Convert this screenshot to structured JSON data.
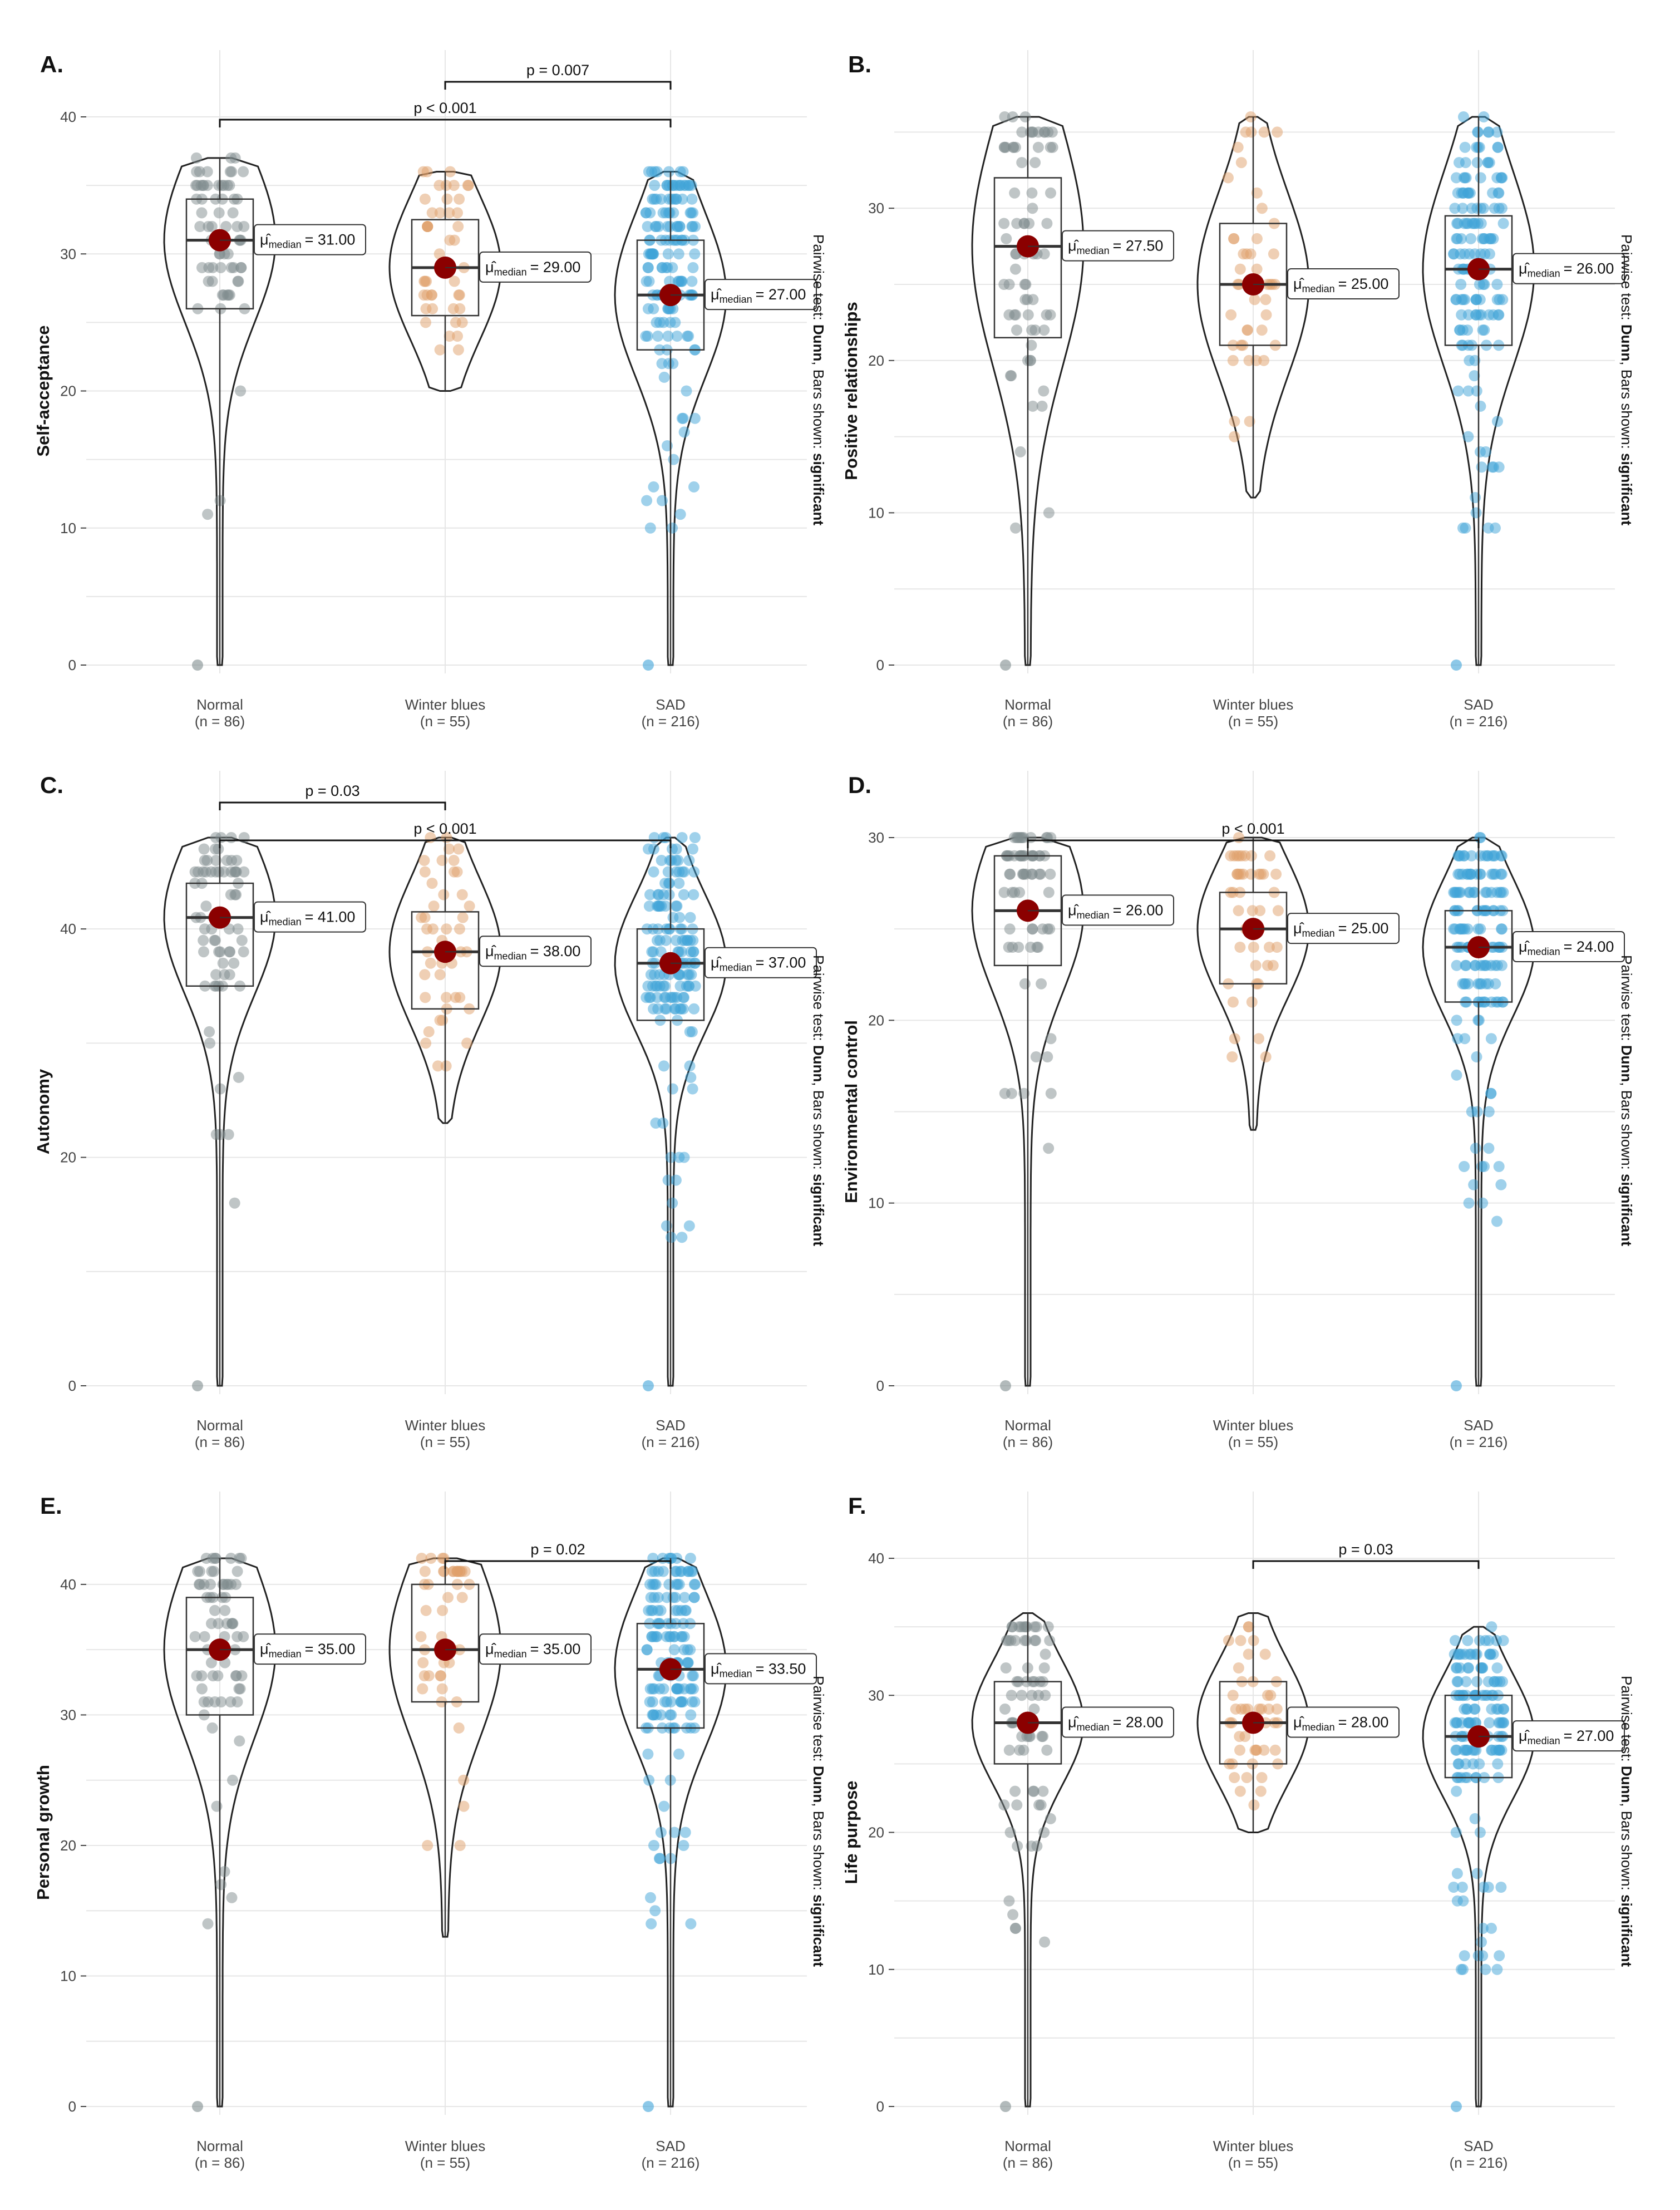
{
  "figure": {
    "groups": [
      {
        "label": "Normal",
        "n": "(n = 86)",
        "color": "#7f8c8d"
      },
      {
        "label": "Winter blues",
        "n": "(n = 55)",
        "color": "#e0a06a"
      },
      {
        "label": "SAD",
        "n": "(n = 216)",
        "color": "#3fa3d8"
      }
    ],
    "colors": {
      "median_point": "#8b0000",
      "grid": "#e6e6e6",
      "outline": "#222222"
    },
    "side_note": {
      "prefix": "Pairwise test: ",
      "test": "Dunn",
      "middle": ", Bars shown: ",
      "shown": "significant"
    },
    "median_symbol": "μ̂",
    "median_sub": "median"
  },
  "chart_data": [
    {
      "type": "violin-box",
      "panel_label": "A.",
      "ylabel": "Self-acceptance",
      "ylim": [
        0,
        40
      ],
      "yticks": [
        0,
        10,
        20,
        30,
        40
      ],
      "medians": [
        31.0,
        29.0,
        27.0
      ],
      "median_labels": [
        "= 31.00",
        "= 29.00",
        "= 27.00"
      ],
      "quartiles": [
        [
          26,
          34
        ],
        [
          25.5,
          32.5
        ],
        [
          23,
          31
        ]
      ],
      "ranges": [
        [
          0,
          37
        ],
        [
          20,
          36
        ],
        [
          0,
          36
        ]
      ],
      "significance": [
        {
          "from": 1,
          "to": 2,
          "label": "p = 0.007",
          "level": 2
        },
        {
          "from": 0,
          "to": 2,
          "label": "p < 0.001",
          "level": 1
        }
      ]
    },
    {
      "type": "violin-box",
      "panel_label": "B.",
      "ylabel": "Positive relationships",
      "ylim": [
        0,
        36
      ],
      "yticks": [
        0,
        10,
        20,
        30
      ],
      "medians": [
        27.5,
        25.0,
        26.0
      ],
      "median_labels": [
        "= 27.50",
        "= 25.00",
        "= 26.00"
      ],
      "quartiles": [
        [
          21.5,
          32
        ],
        [
          21,
          29
        ],
        [
          21,
          29.5
        ]
      ],
      "ranges": [
        [
          0,
          36
        ],
        [
          11,
          36
        ],
        [
          0,
          36
        ]
      ],
      "significance": []
    },
    {
      "type": "violin-box",
      "panel_label": "C.",
      "ylabel": "Autonomy",
      "ylim": [
        0,
        48
      ],
      "yticks": [
        0,
        20,
        40
      ],
      "medians": [
        41.0,
        38.0,
        37.0
      ],
      "median_labels": [
        "= 41.00",
        "= 38.00",
        "= 37.00"
      ],
      "quartiles": [
        [
          35,
          44
        ],
        [
          33,
          41.5
        ],
        [
          32,
          40
        ]
      ],
      "ranges": [
        [
          0,
          48
        ],
        [
          23,
          48
        ],
        [
          0,
          48
        ]
      ],
      "significance": [
        {
          "from": 0,
          "to": 1,
          "label": "p = 0.03",
          "level": 2
        },
        {
          "from": 0,
          "to": 2,
          "label": "p < 0.001",
          "level": 1
        }
      ]
    },
    {
      "type": "violin-box",
      "panel_label": "D.",
      "ylabel": "Environmental control",
      "ylim": [
        0,
        30
      ],
      "yticks": [
        0,
        10,
        20,
        30
      ],
      "medians": [
        26.0,
        25.0,
        24.0
      ],
      "median_labels": [
        "= 26.00",
        "= 25.00",
        "= 24.00"
      ],
      "quartiles": [
        [
          23,
          29
        ],
        [
          22,
          27
        ],
        [
          21,
          26
        ]
      ],
      "ranges": [
        [
          0,
          30
        ],
        [
          14,
          30
        ],
        [
          0,
          30
        ]
      ],
      "significance": [
        {
          "from": 0,
          "to": 2,
          "label": "p < 0.001",
          "level": 1
        }
      ]
    },
    {
      "type": "violin-box",
      "panel_label": "E.",
      "ylabel": "Personal growth",
      "ylim": [
        0,
        42
      ],
      "yticks": [
        0,
        10,
        20,
        30,
        40
      ],
      "medians": [
        35.0,
        35.0,
        33.5
      ],
      "median_labels": [
        "= 35.00",
        "= 35.00",
        "= 33.50"
      ],
      "quartiles": [
        [
          30,
          39
        ],
        [
          31,
          40
        ],
        [
          29,
          37
        ]
      ],
      "ranges": [
        [
          0,
          42
        ],
        [
          13,
          42
        ],
        [
          0,
          42
        ]
      ],
      "significance": [
        {
          "from": 1,
          "to": 2,
          "label": "p = 0.02",
          "level": 1
        }
      ]
    },
    {
      "type": "violin-box",
      "panel_label": "F.",
      "ylabel": "Life purpose",
      "ylim": [
        0,
        40
      ],
      "yticks": [
        0,
        10,
        20,
        30,
        40
      ],
      "medians": [
        28.0,
        28.0,
        27.0
      ],
      "median_labels": [
        "= 28.00",
        "= 28.00",
        "= 27.00"
      ],
      "quartiles": [
        [
          25,
          31
        ],
        [
          25,
          31
        ],
        [
          24,
          30
        ]
      ],
      "ranges": [
        [
          0,
          36
        ],
        [
          20,
          36
        ],
        [
          0,
          35
        ]
      ],
      "significance": [
        {
          "from": 1,
          "to": 2,
          "label": "p = 0.03",
          "level": 1
        }
      ]
    }
  ]
}
